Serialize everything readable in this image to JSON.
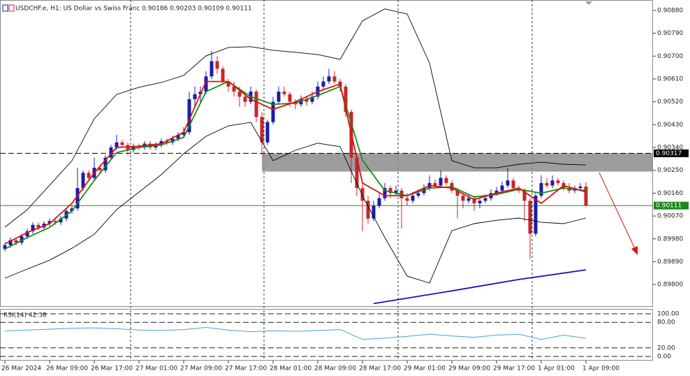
{
  "chart_data": {
    "type": "candlestick",
    "title": "USDCHF.e, H1:  US Dollar vs Swiss Franc  0.90186 0.90203 0.90109 0.90111",
    "up_color": "#1c1ca8",
    "down_color": "#c8262a",
    "categories": [
      "26 Mar 2024",
      null,
      null,
      null,
      null,
      null,
      null,
      null,
      "26 Mar 09:00",
      null,
      null,
      null,
      null,
      null,
      null,
      null,
      "26 Mar 17:00",
      null,
      null,
      null,
      null,
      null,
      null,
      null,
      "27 Mar 01:00",
      null,
      null,
      null,
      null,
      null,
      null,
      null,
      "27 Mar 09:00",
      null,
      null,
      null,
      null,
      null,
      null,
      null,
      "27 Mar 17:00",
      null,
      null,
      null,
      null,
      null,
      null,
      null,
      "28 Mar 01:00",
      null,
      null,
      null,
      null,
      null,
      null,
      null,
      "28 Mar 09:00",
      null,
      null,
      null,
      null,
      null,
      null,
      null,
      "28 Mar 17:00",
      null,
      null,
      null,
      null,
      null,
      null,
      null,
      "29 Mar 01:00",
      null,
      null,
      null,
      null,
      null,
      null,
      null,
      "29 Mar 09:00",
      null,
      null,
      null,
      null,
      null,
      null,
      null,
      "29 Mar 17:00",
      null,
      null,
      null,
      null,
      null,
      null,
      null,
      "1 Apr 01:00",
      null,
      null,
      null,
      null,
      null,
      null,
      null,
      "1 Apr 09:00"
    ],
    "ohlc": [
      [
        0.8994,
        0.89965,
        0.8993,
        0.89955
      ],
      [
        0.89955,
        0.89985,
        0.89945,
        0.89975
      ],
      [
        0.89975,
        0.89985,
        0.89955,
        0.89965
      ],
      [
        0.89965,
        0.9,
        0.89955,
        0.8999
      ],
      [
        0.8999,
        0.9002,
        0.8998,
        0.9001
      ],
      [
        0.9001,
        0.90045,
        0.9,
        0.90035
      ],
      [
        0.90035,
        0.90045,
        0.90015,
        0.90025
      ],
      [
        0.90025,
        0.9005,
        0.90015,
        0.9004
      ],
      [
        0.9004,
        0.9006,
        0.9003,
        0.9005
      ],
      [
        0.9005,
        0.9006,
        0.90035,
        0.90045
      ],
      [
        0.90045,
        0.9007,
        0.90035,
        0.9006
      ],
      [
        0.9006,
        0.901,
        0.9005,
        0.9009
      ],
      [
        0.9009,
        0.9011,
        0.9008,
        0.901
      ],
      [
        0.901,
        0.9026,
        0.9009,
        0.9018
      ],
      [
        0.9018,
        0.9025,
        0.9017,
        0.9024
      ],
      [
        0.9024,
        0.9025,
        0.9021,
        0.9022
      ],
      [
        0.9022,
        0.903,
        0.9021,
        0.9026
      ],
      [
        0.9026,
        0.9027,
        0.9024,
        0.9025
      ],
      [
        0.9025,
        0.9031,
        0.9024,
        0.903
      ],
      [
        0.903,
        0.9035,
        0.9029,
        0.9034
      ],
      [
        0.9034,
        0.9039,
        0.9033,
        0.9036
      ],
      [
        0.9036,
        0.9037,
        0.9034,
        0.9035
      ],
      [
        0.9035,
        0.9036,
        0.9031,
        0.9033
      ],
      [
        0.9033,
        0.90355,
        0.9032,
        0.90345
      ],
      [
        0.90345,
        0.90355,
        0.9033,
        0.9034
      ],
      [
        0.9034,
        0.90365,
        0.9033,
        0.90355
      ],
      [
        0.90355,
        0.90365,
        0.9033,
        0.9034
      ],
      [
        0.9034,
        0.9036,
        0.9033,
        0.9035
      ],
      [
        0.9035,
        0.90375,
        0.9034,
        0.90365
      ],
      [
        0.90365,
        0.90375,
        0.9035,
        0.9036
      ],
      [
        0.9036,
        0.90385,
        0.9035,
        0.90375
      ],
      [
        0.90375,
        0.904,
        0.90365,
        0.9039
      ],
      [
        0.9039,
        0.9042,
        0.9038,
        0.904
      ],
      [
        0.904,
        0.9056,
        0.9039,
        0.9053
      ],
      [
        0.9053,
        0.9058,
        0.905,
        0.9055
      ],
      [
        0.9055,
        0.9058,
        0.9052,
        0.9056
      ],
      [
        0.9056,
        0.9064,
        0.9055,
        0.9062
      ],
      [
        0.9062,
        0.9072,
        0.9061,
        0.9068
      ],
      [
        0.9068,
        0.907,
        0.9063,
        0.9065
      ],
      [
        0.9065,
        0.9066,
        0.9059,
        0.906
      ],
      [
        0.906,
        0.9061,
        0.9056,
        0.9058
      ],
      [
        0.9058,
        0.906,
        0.9054,
        0.9056
      ],
      [
        0.9056,
        0.9058,
        0.905,
        0.9054
      ],
      [
        0.9054,
        0.9056,
        0.905,
        0.9052
      ],
      [
        0.9052,
        0.9058,
        0.9051,
        0.9056
      ],
      [
        0.9056,
        0.9057,
        0.9044,
        0.9046
      ],
      [
        0.9046,
        0.9048,
        0.9031,
        0.9036
      ],
      [
        0.9036,
        0.9045,
        0.9035,
        0.9044
      ],
      [
        0.9044,
        0.9054,
        0.9043,
        0.9052
      ],
      [
        0.9052,
        0.9058,
        0.9051,
        0.9056
      ],
      [
        0.9056,
        0.9058,
        0.9054,
        0.9055
      ],
      [
        0.9055,
        0.9056,
        0.905,
        0.9052
      ],
      [
        0.9052,
        0.9053,
        0.9049,
        0.9051
      ],
      [
        0.9051,
        0.90545,
        0.905,
        0.9053
      ],
      [
        0.9053,
        0.9054,
        0.90505,
        0.9052
      ],
      [
        0.9052,
        0.9056,
        0.9051,
        0.9054
      ],
      [
        0.9054,
        0.906,
        0.9053,
        0.9058
      ],
      [
        0.9058,
        0.9062,
        0.9057,
        0.906
      ],
      [
        0.906,
        0.9065,
        0.9059,
        0.9062
      ],
      [
        0.9062,
        0.9064,
        0.9059,
        0.906
      ],
      [
        0.906,
        0.9061,
        0.9056,
        0.9058
      ],
      [
        0.9058,
        0.9059,
        0.9046,
        0.9048
      ],
      [
        0.9048,
        0.9049,
        0.902,
        0.903
      ],
      [
        0.903,
        0.9031,
        0.9015,
        0.9018
      ],
      [
        0.9018,
        0.902,
        0.9001,
        0.9013
      ],
      [
        0.9013,
        0.9015,
        0.9004,
        0.9006
      ],
      [
        0.9006,
        0.9013,
        0.9005,
        0.9011
      ],
      [
        0.9011,
        0.9016,
        0.901,
        0.9014
      ],
      [
        0.9014,
        0.902,
        0.9013,
        0.9018
      ],
      [
        0.9018,
        0.9019,
        0.9014,
        0.9016
      ],
      [
        0.9016,
        0.9019,
        0.9015,
        0.9017
      ],
      [
        0.9017,
        0.9018,
        0.9002,
        0.9014
      ],
      [
        0.9014,
        0.9016,
        0.9011,
        0.9013
      ],
      [
        0.9013,
        0.90165,
        0.9012,
        0.9015
      ],
      [
        0.9015,
        0.90175,
        0.9014,
        0.9016
      ],
      [
        0.9016,
        0.90195,
        0.9015,
        0.9018
      ],
      [
        0.9018,
        0.9023,
        0.9017,
        0.902
      ],
      [
        0.902,
        0.90215,
        0.9018,
        0.9019
      ],
      [
        0.9019,
        0.9025,
        0.9018,
        0.9022
      ],
      [
        0.9022,
        0.9023,
        0.9019,
        0.902
      ],
      [
        0.902,
        0.9021,
        0.9016,
        0.9017
      ],
      [
        0.9017,
        0.9018,
        0.9006,
        0.9015
      ],
      [
        0.9015,
        0.9016,
        0.901,
        0.9013
      ],
      [
        0.9013,
        0.90155,
        0.9012,
        0.9014
      ],
      [
        0.9014,
        0.9015,
        0.9009,
        0.9012
      ],
      [
        0.9012,
        0.9014,
        0.901,
        0.9013
      ],
      [
        0.9013,
        0.90155,
        0.9012,
        0.9014
      ],
      [
        0.9014,
        0.90175,
        0.9013,
        0.9016
      ],
      [
        0.9016,
        0.90185,
        0.9015,
        0.9017
      ],
      [
        0.9017,
        0.90205,
        0.9016,
        0.9019
      ],
      [
        0.9019,
        0.9026,
        0.9018,
        0.9021
      ],
      [
        0.9021,
        0.9022,
        0.9017,
        0.9018
      ],
      [
        0.9018,
        0.9019,
        0.9016,
        0.9017
      ],
      [
        0.9017,
        0.9018,
        0.9005,
        0.9013
      ],
      [
        0.9013,
        0.9014,
        0.899,
        0.9
      ],
      [
        0.9,
        0.9016,
        0.8999,
        0.9015
      ],
      [
        0.9015,
        0.9023,
        0.9014,
        0.902
      ],
      [
        0.902,
        0.9022,
        0.9018,
        0.9019
      ],
      [
        0.9019,
        0.9023,
        0.9018,
        0.9021
      ],
      [
        0.9021,
        0.9022,
        0.9019,
        0.902
      ],
      [
        0.902,
        0.9021,
        0.9017,
        0.9018
      ],
      [
        0.9018,
        0.902,
        0.9016,
        0.9017
      ],
      [
        0.9017,
        0.9019,
        0.9016,
        0.9018
      ],
      [
        0.9018,
        0.902,
        0.9017,
        0.90186
      ],
      [
        0.90186,
        0.90203,
        0.90109,
        0.90111
      ]
    ],
    "series": [
      {
        "name": "Upper band",
        "color": "#000000",
        "x": [
          0,
          4,
          8,
          12,
          16,
          20,
          24,
          28,
          32,
          36,
          40,
          44,
          48,
          52,
          56,
          60,
          64,
          68,
          72,
          76,
          80,
          84,
          88,
          92,
          96,
          100,
          104
        ],
        "values": [
          0.90026,
          0.90095,
          0.90191,
          0.90288,
          0.90453,
          0.90549,
          0.90577,
          0.90596,
          0.90624,
          0.90701,
          0.90734,
          0.90737,
          0.90723,
          0.90715,
          0.90706,
          0.90687,
          0.90839,
          0.90886,
          0.90866,
          0.90673,
          0.90288,
          0.9026,
          0.9026,
          0.90274,
          0.90282,
          0.90274,
          0.90271
        ]
      },
      {
        "name": "Lower band",
        "color": "#000000",
        "x": [
          0,
          4,
          8,
          12,
          16,
          20,
          24,
          28,
          32,
          36,
          40,
          44,
          48,
          52,
          56,
          60,
          64,
          68,
          72,
          76,
          80,
          84,
          88,
          92,
          96,
          100,
          104
        ],
        "values": [
          0.89825,
          0.89861,
          0.89896,
          0.89943,
          0.89998,
          0.90095,
          0.90164,
          0.90233,
          0.90315,
          0.90384,
          0.90425,
          0.90439,
          0.90288,
          0.90329,
          0.90357,
          0.90343,
          0.9015,
          0.89985,
          0.89833,
          0.89806,
          0.90012,
          0.9004,
          0.90053,
          0.90062,
          0.90045,
          0.9004,
          0.90062
        ]
      },
      {
        "name": "Slow MA",
        "color": "#1a8a1a",
        "x": [
          0,
          4,
          8,
          12,
          16,
          20,
          24,
          28,
          32,
          36,
          40,
          44,
          48,
          52,
          56,
          60,
          64,
          68,
          72,
          76,
          80,
          84,
          88,
          92,
          96,
          100,
          104
        ],
        "values": [
          0.8994,
          0.89985,
          0.90025,
          0.9009,
          0.9021,
          0.9032,
          0.9034,
          0.9035,
          0.9038,
          0.9056,
          0.906,
          0.9054,
          0.9051,
          0.90515,
          0.90545,
          0.9058,
          0.9029,
          0.9017,
          0.9015,
          0.9018,
          0.90185,
          0.90145,
          0.90155,
          0.90175,
          0.9016,
          0.9018,
          0.9017
        ]
      },
      {
        "name": "Fast MA",
        "color": "#e01010",
        "x": [
          0,
          4,
          8,
          12,
          16,
          20,
          24,
          28,
          32,
          36,
          40,
          44,
          48,
          52,
          56,
          60,
          64,
          68,
          72,
          76,
          80,
          84,
          88,
          92,
          96,
          100,
          104
        ],
        "values": [
          0.8996,
          0.90005,
          0.9004,
          0.9012,
          0.9024,
          0.9034,
          0.90345,
          0.90355,
          0.904,
          0.906,
          0.906,
          0.9053,
          0.9049,
          0.9052,
          0.9056,
          0.9059,
          0.902,
          0.9015,
          0.9015,
          0.9019,
          0.9018,
          0.90135,
          0.9016,
          0.9018,
          0.9012,
          0.9019,
          0.90165
        ]
      },
      {
        "name": "Trend MA",
        "color": "#1414c0",
        "x": [
          66,
          80,
          92,
          104
        ],
        "values": [
          0.89725,
          0.89775,
          0.8982,
          0.89858
        ]
      }
    ],
    "xlim": [
      -0.875,
      116
    ],
    "ylim": [
      0.89715,
      0.90921
    ],
    "yticks": [
      {
        "value": 0.9088,
        "label": "0.90880"
      },
      {
        "value": 0.9079,
        "label": "0.90790"
      },
      {
        "value": 0.907,
        "label": "0.90700"
      },
      {
        "value": 0.9061,
        "label": "0.90610"
      },
      {
        "value": 0.9052,
        "label": "0.90520"
      },
      {
        "value": 0.9043,
        "label": "0.90430"
      },
      {
        "value": 0.9034,
        "label": "0.90340"
      },
      {
        "value": 0.9025,
        "label": "0.90250"
      },
      {
        "value": 0.9016,
        "label": "0.90160"
      },
      {
        "value": 0.9007,
        "label": "0.90070"
      },
      {
        "value": 0.8998,
        "label": "0.89980"
      },
      {
        "value": 0.8989,
        "label": "0.89890"
      },
      {
        "value": 0.898,
        "label": "0.89800"
      }
    ],
    "zone": {
      "from": 0.90245,
      "to": 0.90317,
      "x": 46,
      "color": "#8c8c8c"
    },
    "levels": [
      {
        "value": 0.90317,
        "label": "0.90317",
        "color": "#000000",
        "dashed": true
      },
      {
        "value": 0.90111,
        "label": "0.90111",
        "color": "#1a8a1a",
        "dashed": false
      }
    ],
    "rsi": {
      "label": "RSI(14) 42.38",
      "color": "#4a9fd8",
      "ylim": [
        0,
        100
      ],
      "yticks": [
        {
          "value": 100,
          "label": "100.00"
        },
        {
          "value": 80,
          "label": "80.00"
        },
        {
          "value": 20,
          "label": "20.00"
        },
        {
          "value": 0,
          "label": "0.00"
        }
      ],
      "x": [
        0,
        4,
        8,
        12,
        16,
        20,
        24,
        28,
        32,
        36,
        40,
        44,
        48,
        52,
        56,
        60,
        64,
        68,
        72,
        76,
        80,
        84,
        88,
        92,
        96,
        100,
        104
      ],
      "values": [
        60,
        62,
        64,
        66,
        67,
        65,
        62,
        61,
        63,
        68,
        62,
        58,
        60,
        59,
        61,
        63,
        40,
        43,
        47,
        52,
        48,
        45,
        50,
        52,
        40,
        50,
        42.38
      ]
    }
  }
}
